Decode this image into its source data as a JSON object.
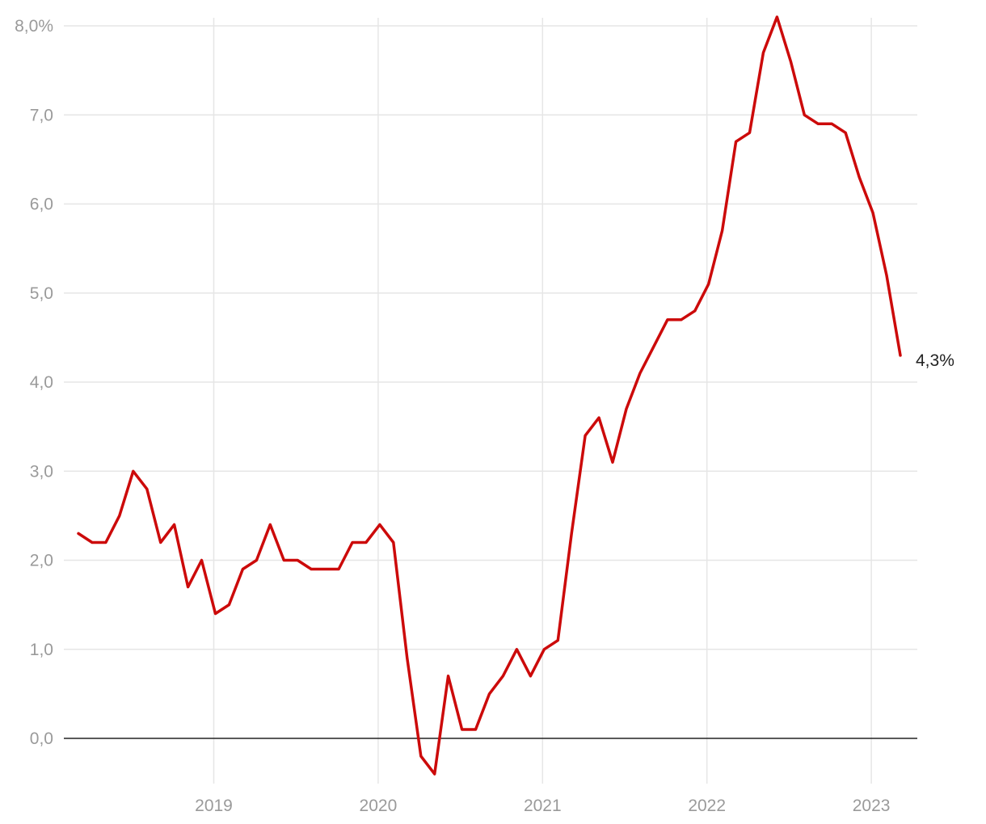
{
  "chart_data": {
    "type": "line",
    "title": "",
    "xlabel": "",
    "ylabel": "",
    "x_start": "2018-03",
    "x_ticks": [
      "2019",
      "2020",
      "2021",
      "2022",
      "2023"
    ],
    "y_ticks": [
      "8,0%",
      "7,0",
      "6,0",
      "5,0",
      "4,0",
      "3,0",
      "2,0",
      "1,0",
      "0,0"
    ],
    "ylim": [
      -0.4,
      8.1
    ],
    "grid": true,
    "series": [
      {
        "color": "#cc0a0a",
        "values": [
          2.3,
          2.2,
          2.2,
          2.5,
          3.0,
          2.8,
          2.2,
          2.4,
          1.7,
          2.0,
          1.4,
          1.5,
          1.9,
          2.0,
          2.4,
          2.0,
          2.0,
          1.9,
          1.9,
          1.9,
          2.2,
          2.2,
          2.4,
          2.2,
          0.9,
          -0.2,
          -0.4,
          0.7,
          0.1,
          0.1,
          0.5,
          0.7,
          1.0,
          0.7,
          1.0,
          1.1,
          2.3,
          3.4,
          3.6,
          3.1,
          3.7,
          4.1,
          4.4,
          4.7,
          4.7,
          4.8,
          5.1,
          5.7,
          6.7,
          6.8,
          7.7,
          8.1,
          7.6,
          7.0,
          6.9,
          6.9,
          6.8,
          6.3,
          5.9,
          5.2,
          4.3
        ]
      }
    ],
    "end_label": "4,3%",
    "colors": {
      "grid": "#e6e6e6",
      "zero_line": "#222222",
      "tick_text": "#9a9a9a"
    }
  }
}
